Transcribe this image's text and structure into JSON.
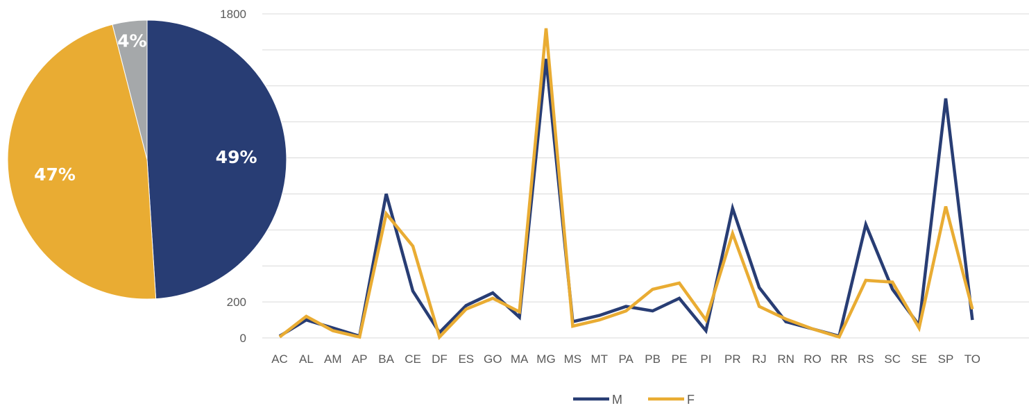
{
  "colors": {
    "M": "#283D74",
    "F": "#E9AC33",
    "other": "#A5A8AA",
    "grid": "#D9D9D9",
    "axis_text": "#595959",
    "pie_label_text": "#FFFFFF"
  },
  "chart_data": [
    {
      "type": "line",
      "categories": [
        "AC",
        "AL",
        "AM",
        "AP",
        "BA",
        "CE",
        "DF",
        "ES",
        "GO",
        "MA",
        "MG",
        "MS",
        "MT",
        "PA",
        "PB",
        "PE",
        "PI",
        "PR",
        "RJ",
        "RN",
        "RO",
        "RR",
        "RS",
        "SC",
        "SE",
        "SP",
        "TO"
      ],
      "series": [
        {
          "name": "M",
          "values": [
            10,
            100,
            55,
            10,
            800,
            260,
            30,
            180,
            250,
            115,
            1550,
            90,
            125,
            175,
            150,
            220,
            40,
            720,
            280,
            90,
            50,
            10,
            630,
            270,
            70,
            1330,
            100
          ]
        },
        {
          "name": "F",
          "values": [
            5,
            120,
            40,
            5,
            690,
            510,
            5,
            160,
            220,
            145,
            1720,
            65,
            100,
            150,
            270,
            305,
            100,
            580,
            175,
            105,
            50,
            5,
            320,
            310,
            55,
            730,
            160
          ]
        }
      ],
      "y_tick_labels": [
        "0",
        "200",
        "",
        "",
        "",
        "",
        "",
        "",
        "",
        "1800"
      ],
      "ylim": [
        0,
        1800
      ],
      "grid": true,
      "legend": "bottom"
    },
    {
      "type": "pie",
      "slices": [
        {
          "label": "49%",
          "value": 49,
          "color_key": "M"
        },
        {
          "label": "47%",
          "value": 47,
          "color_key": "F"
        },
        {
          "label": "4%",
          "value": 4,
          "color_key": "other"
        }
      ]
    }
  ]
}
